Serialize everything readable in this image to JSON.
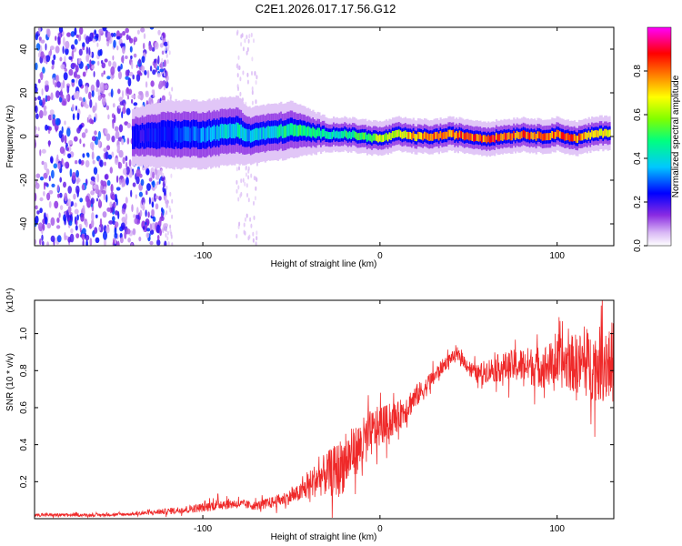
{
  "page_title": "C2E1.2026.017.17.56.G12",
  "chart_data": [
    {
      "type": "heatmap",
      "title": "C2E1.2026.017.17.56.G12",
      "xlabel": "Height of straight line (km)",
      "ylabel": "Frequency (Hz)",
      "xlim": [
        -195,
        132
      ],
      "ylim": [
        -50,
        50
      ],
      "xticks": [
        -100,
        0,
        100
      ],
      "yticks": [
        -40,
        -20,
        0,
        20,
        40
      ],
      "colorbar": {
        "label": "Normalized spectral amplitude",
        "range": [
          0,
          1
        ],
        "ticks": [
          0.0,
          0.2,
          0.4,
          0.6,
          0.8
        ],
        "colormap": [
          "#ffffff",
          "#d9b8f5",
          "#8a2be2",
          "#0000ff",
          "#00c8ff",
          "#00ff80",
          "#80ff00",
          "#ffff00",
          "#ff8000",
          "#ff0000",
          "#ff00ff"
        ]
      },
      "center_frequency_track": {
        "x": [
          -140,
          -120,
          -100,
          -90,
          -80,
          -75,
          -70,
          -60,
          -50,
          -40,
          -30,
          -20,
          -10,
          0,
          10,
          20,
          30,
          40,
          50,
          60,
          70,
          80,
          90,
          100,
          110,
          120,
          130
        ],
        "freq": [
          0,
          1,
          1,
          2,
          3,
          0,
          1,
          2,
          3,
          2,
          1,
          1,
          0,
          -1,
          1,
          0,
          0,
          1,
          0,
          -1,
          0,
          1,
          0,
          1,
          -1,
          1,
          2
        ],
        "halfwidth": [
          5,
          6,
          6,
          6,
          6,
          5,
          5,
          5,
          5,
          4,
          3,
          3,
          3,
          3,
          3,
          3,
          3,
          3,
          3,
          3,
          3,
          3,
          3,
          3,
          3,
          3,
          3
        ],
        "peak_amplitude": [
          0.3,
          0.35,
          0.4,
          0.45,
          0.5,
          0.45,
          0.45,
          0.5,
          0.55,
          0.55,
          0.5,
          0.55,
          0.6,
          0.7,
          0.75,
          0.85,
          0.9,
          0.9,
          0.92,
          0.92,
          0.92,
          0.9,
          0.92,
          0.92,
          0.9,
          0.8,
          0.75
        ]
      },
      "noise_region": {
        "x": [
          -195,
          -120
        ],
        "freq": [
          -50,
          50
        ],
        "amplitude": [
          0.1,
          0.35
        ]
      }
    },
    {
      "type": "line",
      "xlabel": "Height of straight line (km)",
      "ylabel": "SNR (10 * v/v)",
      "yscale_label": "(x10⁴)",
      "xlim": [
        -195,
        132
      ],
      "ylim": [
        0,
        1.18
      ],
      "xticks": [
        -100,
        0,
        100
      ],
      "yticks": [
        0.2,
        0.4,
        0.6,
        0.8,
        1.0
      ],
      "series": [
        {
          "name": "SNR",
          "color": "#ef2929",
          "x": [
            -195,
            -180,
            -160,
            -140,
            -120,
            -100,
            -90,
            -80,
            -70,
            -60,
            -50,
            -45,
            -40,
            -35,
            -30,
            -25,
            -20,
            -15,
            -10,
            -5,
            0,
            5,
            10,
            15,
            20,
            25,
            30,
            35,
            40,
            45,
            50,
            55,
            60,
            70,
            80,
            90,
            100,
            110,
            120,
            132
          ],
          "mean": [
            0.02,
            0.02,
            0.02,
            0.025,
            0.04,
            0.06,
            0.08,
            0.08,
            0.07,
            0.09,
            0.12,
            0.14,
            0.18,
            0.22,
            0.24,
            0.26,
            0.3,
            0.36,
            0.4,
            0.46,
            0.5,
            0.52,
            0.55,
            0.6,
            0.66,
            0.7,
            0.76,
            0.82,
            0.87,
            0.88,
            0.82,
            0.78,
            0.8,
            0.82,
            0.83,
            0.82,
            0.84,
            0.84,
            0.83,
            0.85
          ],
          "spread": [
            0.01,
            0.01,
            0.01,
            0.01,
            0.02,
            0.03,
            0.04,
            0.03,
            0.03,
            0.04,
            0.05,
            0.06,
            0.1,
            0.12,
            0.15,
            0.18,
            0.2,
            0.16,
            0.18,
            0.16,
            0.14,
            0.12,
            0.1,
            0.1,
            0.08,
            0.07,
            0.06,
            0.05,
            0.04,
            0.04,
            0.05,
            0.06,
            0.08,
            0.1,
            0.12,
            0.14,
            0.16,
            0.2,
            0.24,
            0.28
          ]
        }
      ]
    }
  ]
}
